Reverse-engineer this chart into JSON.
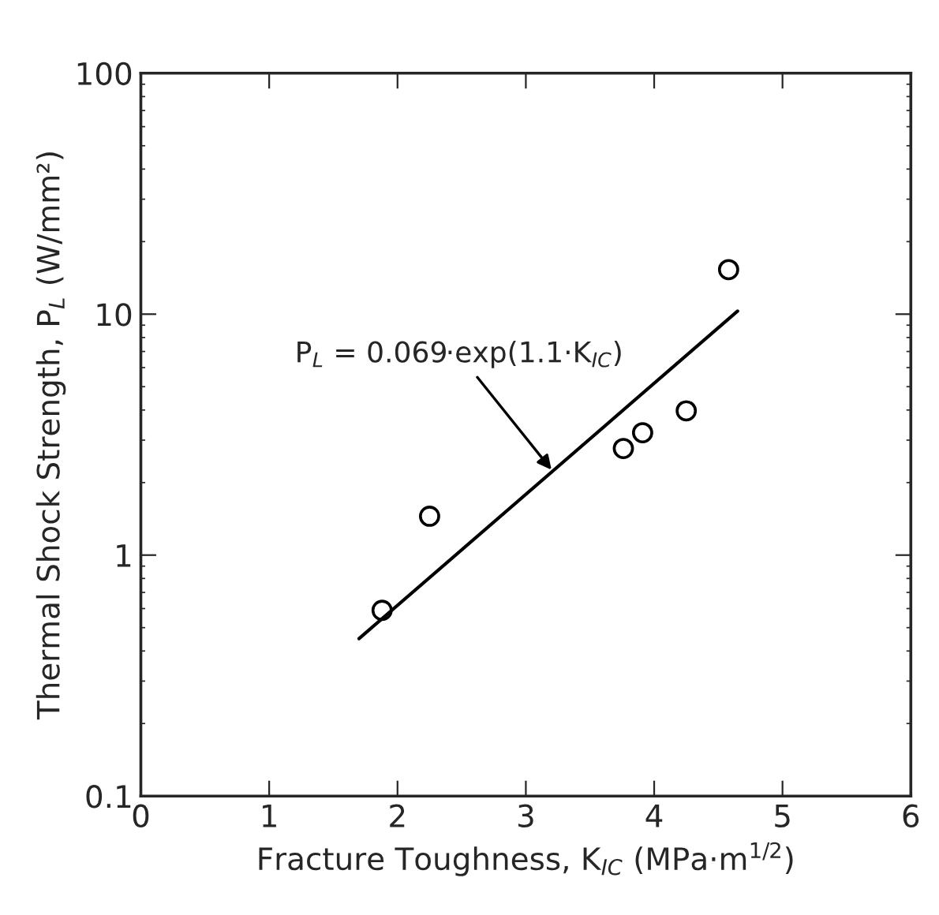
{
  "chart_data": {
    "type": "scatter",
    "xlabel": "Fracture Toughness, K$_{IC}$ (MPa·m$^{1/2}$)",
    "ylabel": "Thermal Shock Strength, P$_{L}$ (W/mm²)",
    "log": "y",
    "xlim": [
      0,
      6
    ],
    "xticks": [
      0,
      1,
      2,
      3,
      4,
      5,
      6
    ],
    "ylim": [
      0.1,
      100
    ],
    "yticks": [
      0.1,
      1,
      10,
      100
    ],
    "grid": false,
    "legend": false,
    "series": [
      {
        "color": "#000000",
        "marker": "circle",
        "x": [
          1.88,
          2.25,
          3.76,
          3.91,
          4.25,
          4.58
        ],
        "values": [
          0.59,
          1.45,
          2.77,
          3.22,
          3.97,
          15.3
        ]
      },
      {
        "type": "line",
        "color": "#000000",
        "line_style": "solid",
        "x": [
          1.7,
          4.65
        ],
        "values": [
          0.45,
          10.3
        ]
      }
    ],
    "annotations": [
      {
        "text": "P$_{L}$ = 0.069·exp(1.1·K$_{IC}$)",
        "x": 3.2,
        "y": 2.26
      }
    ]
  }
}
